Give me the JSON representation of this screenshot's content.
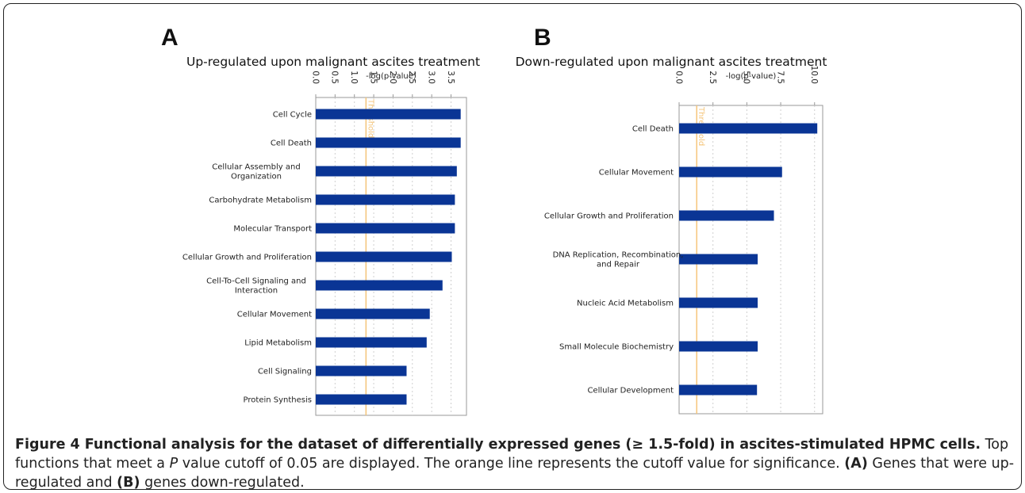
{
  "figure": {
    "caption": {
      "label": "Figure 4",
      "title": " Functional analysis for the dataset of differentially expressed genes (≥ 1.5-fold) in ascites-stimulated HPMC cells.",
      "text_1": " Top functions that meet a ",
      "p_italic": "P",
      "text_2": " value cutoff of 0.05 are displayed. The orange line represents the cutoff value for significance. ",
      "a_ref": "(A)",
      "text_3": " Genes that were up-regulated and ",
      "b_ref": "(B)",
      "text_4": " genes down-regulated."
    },
    "colors": {
      "bar": "#0a3595",
      "threshold": "#f5c57a",
      "grid": "#cfcfcf",
      "axis": "#999999"
    }
  },
  "chart_data": [
    {
      "panel": "A",
      "type": "bar",
      "orientation": "horizontal",
      "title": "Up-regulated upon malignant ascites treatment",
      "xlabel": "-log(p-value)",
      "xlim": [
        0,
        3.9
      ],
      "ticks": [
        "0.0",
        "0.5",
        "1.0",
        "1.5",
        "2.0",
        "2.5",
        "3.0",
        "3.5"
      ],
      "threshold": 1.3,
      "threshold_label": "Threshold",
      "categories": [
        [
          "Cell Cycle"
        ],
        [
          "Cell Death"
        ],
        [
          "Cellular Assembly and",
          "Organization"
        ],
        [
          "Carbohydrate Metabolism"
        ],
        [
          "Molecular Transport"
        ],
        [
          "Cellular Growth and Proliferation"
        ],
        [
          "Cell-To-Cell Signaling and",
          "Interaction"
        ],
        [
          "Cellular Movement"
        ],
        [
          "Lipid Metabolism"
        ],
        [
          "Cell Signaling"
        ],
        [
          "Protein Synthesis"
        ]
      ],
      "values": [
        3.75,
        3.75,
        3.65,
        3.6,
        3.6,
        3.52,
        3.28,
        2.95,
        2.87,
        2.35,
        2.35
      ],
      "grid": true
    },
    {
      "panel": "B",
      "type": "bar",
      "orientation": "horizontal",
      "title": "Down-regulated upon malignant ascites treatment",
      "xlabel": "-log(p-value)",
      "xlim": [
        0,
        10.6
      ],
      "ticks": [
        "0.0",
        "2.5",
        "5.0",
        "7.5",
        "10.0"
      ],
      "threshold": 1.3,
      "threshold_label": "Threshold",
      "categories": [
        [
          "Cell Death"
        ],
        [
          "Cellular Movement"
        ],
        [
          "Cellular Growth and Proliferation"
        ],
        [
          "DNA Replication, Recombination,",
          "and Repair"
        ],
        [
          "Nucleic Acid Metabolism"
        ],
        [
          "Small Molecule Biochemistry"
        ],
        [
          "Cellular Development"
        ]
      ],
      "values": [
        10.2,
        7.6,
        7.0,
        5.8,
        5.8,
        5.8,
        5.75
      ],
      "grid": true
    }
  ]
}
